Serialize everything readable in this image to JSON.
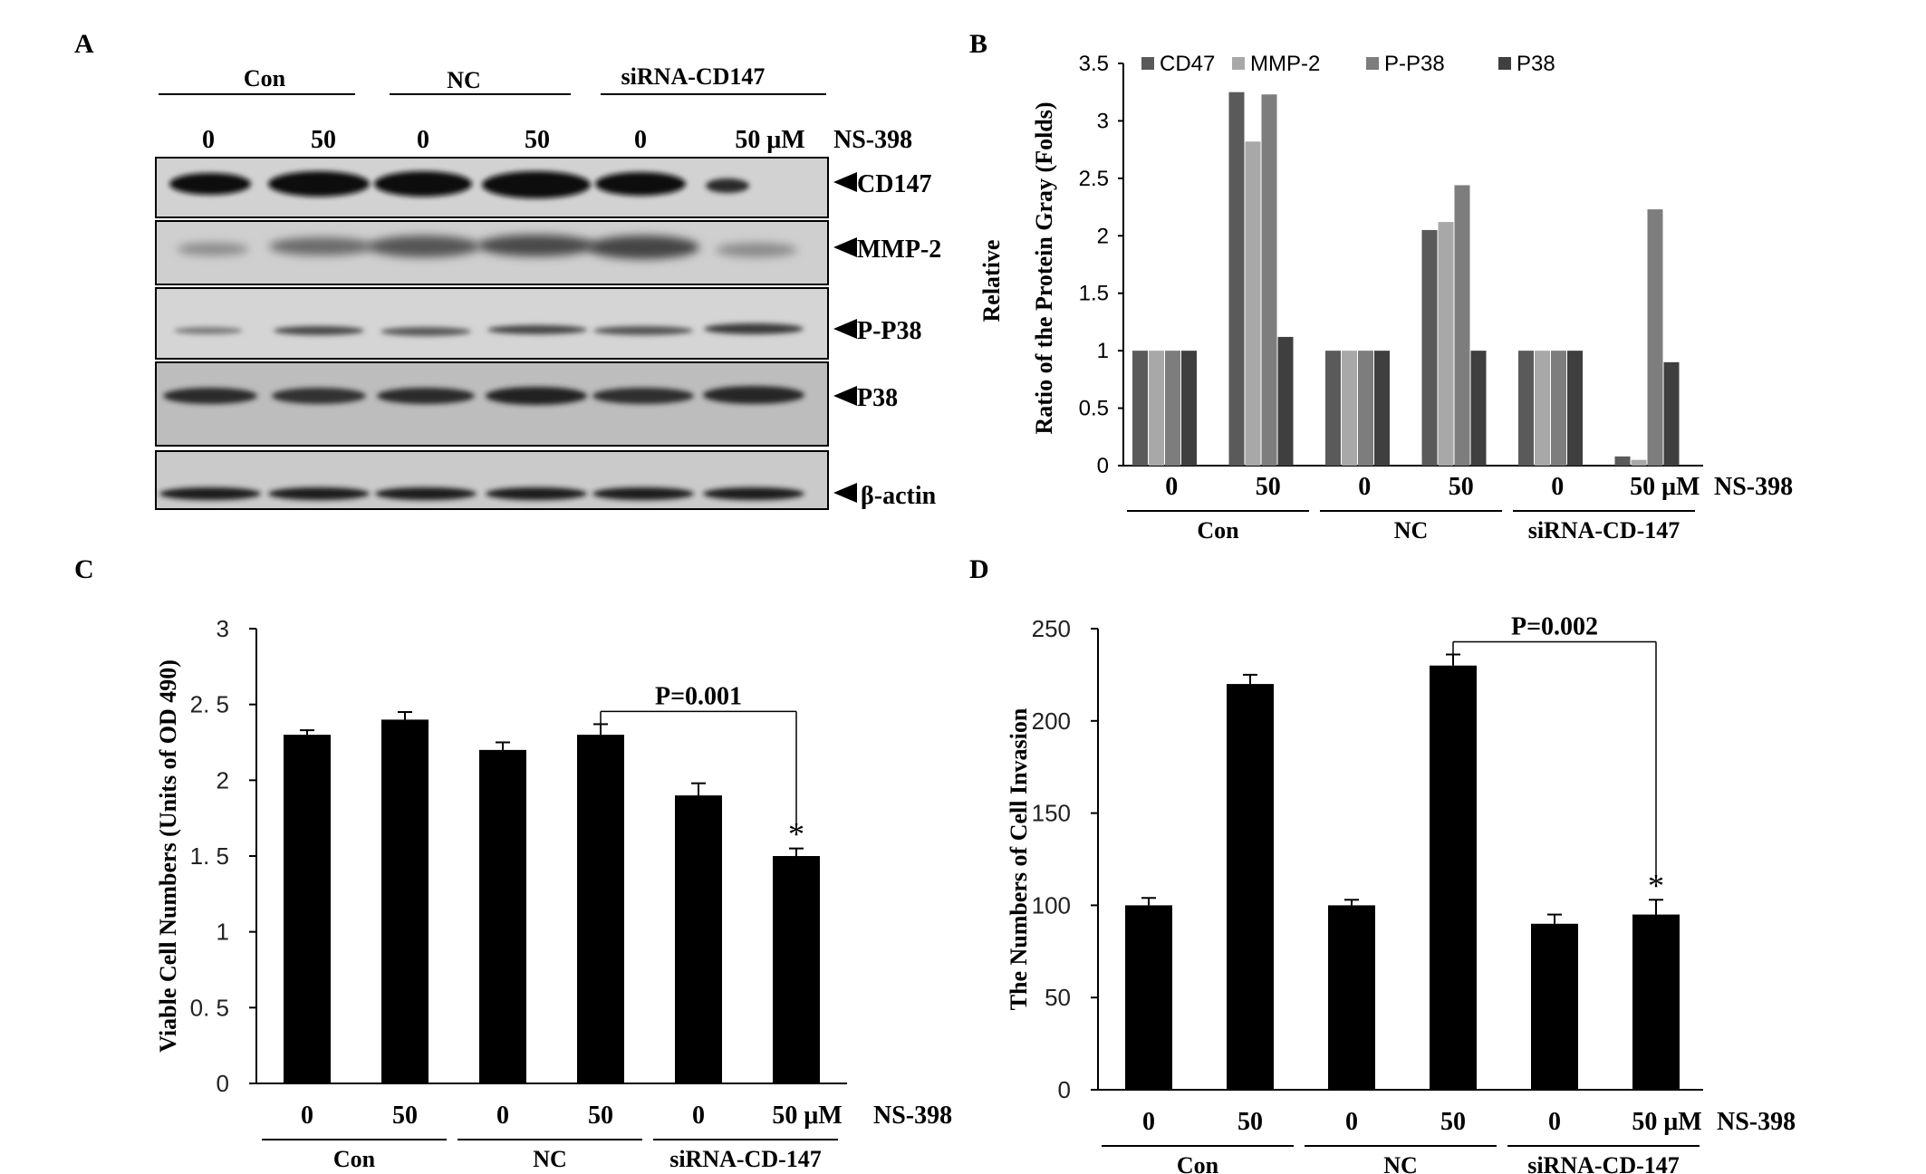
{
  "panels": {
    "A": {
      "letter": "A",
      "groups": [
        "Con",
        "NC",
        "siRNA-CD147"
      ],
      "lanes": [
        "0",
        "50",
        "0",
        "50",
        "0",
        "50 μM"
      ],
      "treatment": "NS-398",
      "blots": [
        "CD147",
        "MMP-2",
        "P-P38",
        "P38",
        "β-actin"
      ]
    },
    "B": {
      "letter": "B"
    },
    "C": {
      "letter": "C"
    },
    "D": {
      "letter": "D"
    }
  },
  "chart_data": [
    {
      "panel": "B",
      "type": "bar",
      "title": "",
      "ylabel_line1": "Relative",
      "ylabel_line2": "Ratio  of  the Protein Gray (Folds)",
      "xlabel": "",
      "categories": [
        "0",
        "50",
        "0",
        "50",
        "0",
        "50 μM"
      ],
      "x_suffix": "NS-398",
      "groups": [
        "Con",
        "NC",
        "siRNA-CD-147"
      ],
      "ylim": [
        0,
        3.5
      ],
      "yticks": [
        "0",
        "0.5",
        "1",
        "1.5",
        "2",
        "2.5",
        "3",
        "3.5"
      ],
      "legend_position": "top",
      "grid": false,
      "series": [
        {
          "name": "CD47",
          "color": "#5a5a5a",
          "values": [
            1,
            3.25,
            1,
            2.05,
            1,
            0.08
          ]
        },
        {
          "name": "MMP-2",
          "color": "#a8a8a8",
          "values": [
            1,
            2.82,
            1,
            2.12,
            1,
            0.05
          ]
        },
        {
          "name": "P-P38",
          "color": "#7d7d7d",
          "values": [
            1,
            3.23,
            1,
            2.44,
            1,
            2.23
          ]
        },
        {
          "name": "P38",
          "color": "#3f3f3f",
          "values": [
            1,
            1.12,
            1,
            1.0,
            1,
            0.9
          ]
        }
      ]
    },
    {
      "panel": "C",
      "type": "bar",
      "title": "",
      "ylabel": "Viable Cell Numbers (Units of OD 490)",
      "xlabel": "",
      "categories": [
        "0",
        "50",
        "0",
        "50",
        "0",
        "50 μM"
      ],
      "x_suffix": "NS-398",
      "groups": [
        "Con",
        "NC",
        "siRNA-CD-147"
      ],
      "ylim": [
        0,
        3
      ],
      "yticks": [
        "0",
        "0. 5",
        "1",
        "1. 5",
        "2",
        "2. 5",
        "3"
      ],
      "grid": false,
      "values": [
        2.3,
        2.4,
        2.2,
        2.3,
        1.9,
        1.5
      ],
      "errors": [
        0.03,
        0.05,
        0.05,
        0.07,
        0.08,
        0.05
      ],
      "significance": {
        "label": "P=0.001",
        "from_index": 3,
        "to_index": 5,
        "marker": "*"
      }
    },
    {
      "panel": "D",
      "type": "bar",
      "title": "",
      "ylabel": "The Numbers of Cell Invasion",
      "xlabel": "",
      "categories": [
        "0",
        "50",
        "0",
        "50",
        "0",
        "50 μM"
      ],
      "x_suffix": "NS-398",
      "groups": [
        "Con",
        "NC",
        "siRNA-CD-147"
      ],
      "ylim": [
        0,
        250
      ],
      "yticks": [
        "0",
        "50",
        "100",
        "150",
        "200",
        "250"
      ],
      "grid": false,
      "values": [
        100,
        220,
        100,
        230,
        90,
        95
      ],
      "errors": [
        4,
        5,
        3,
        6,
        5,
        8
      ],
      "significance": {
        "label": "P=0.002",
        "from_index": 3,
        "to_index": 5,
        "marker": "*"
      }
    }
  ]
}
